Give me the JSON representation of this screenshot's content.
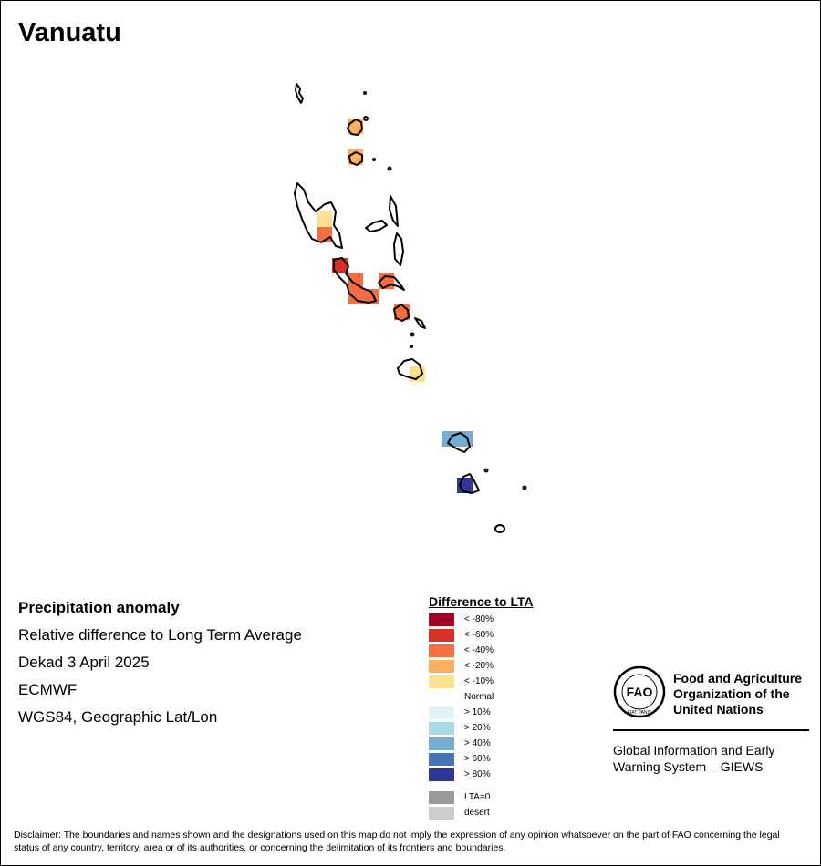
{
  "title": "Vanuatu",
  "info": {
    "heading": "Precipitation anomaly",
    "line1": "Relative difference to Long Term Average",
    "line2": "Dekad 3 April 2025",
    "line3": "ECMWF",
    "line4": "WGS84, Geographic Lat/Lon"
  },
  "legend": {
    "title": "Difference to LTA",
    "classes": [
      {
        "label": "< -80%",
        "color": "#a50026"
      },
      {
        "label": "< -60%",
        "color": "#d73027"
      },
      {
        "label": "< -40%",
        "color": "#f46d43"
      },
      {
        "label": "< -20%",
        "color": "#fdae61"
      },
      {
        "label": "< -10%",
        "color": "#fee090"
      },
      {
        "label": "Normal",
        "color": "#ffffff"
      },
      {
        "label": "> 10%",
        "color": "#e0f3f8"
      },
      {
        "label": "> 20%",
        "color": "#abd9e9"
      },
      {
        "label": "> 40%",
        "color": "#74add1"
      },
      {
        "label": "> 60%",
        "color": "#4575b4"
      },
      {
        "label": "> 80%",
        "color": "#313695"
      }
    ],
    "extra": [
      {
        "label": "LTA=0",
        "color": "#999999"
      },
      {
        "label": "desert",
        "color": "#cccccc"
      }
    ]
  },
  "fao": {
    "org_line1": "Food and Agriculture",
    "org_line2": "Organization of the",
    "org_line3": "United Nations",
    "logo_text": "FAO",
    "logo_motto": "FIAT PANIS",
    "giews_line1": "Global Information and Early",
    "giews_line2": "Warning System – GIEWS"
  },
  "disclaimer": "Disclaimer: The boundaries and names shown and the designations used on this map do not imply the expression of any opinion whatsoever on the part of FAO concerning the legal status of any country, territory, area or of its authorities, or concerning the delimitation of its frontiers and boundaries."
}
